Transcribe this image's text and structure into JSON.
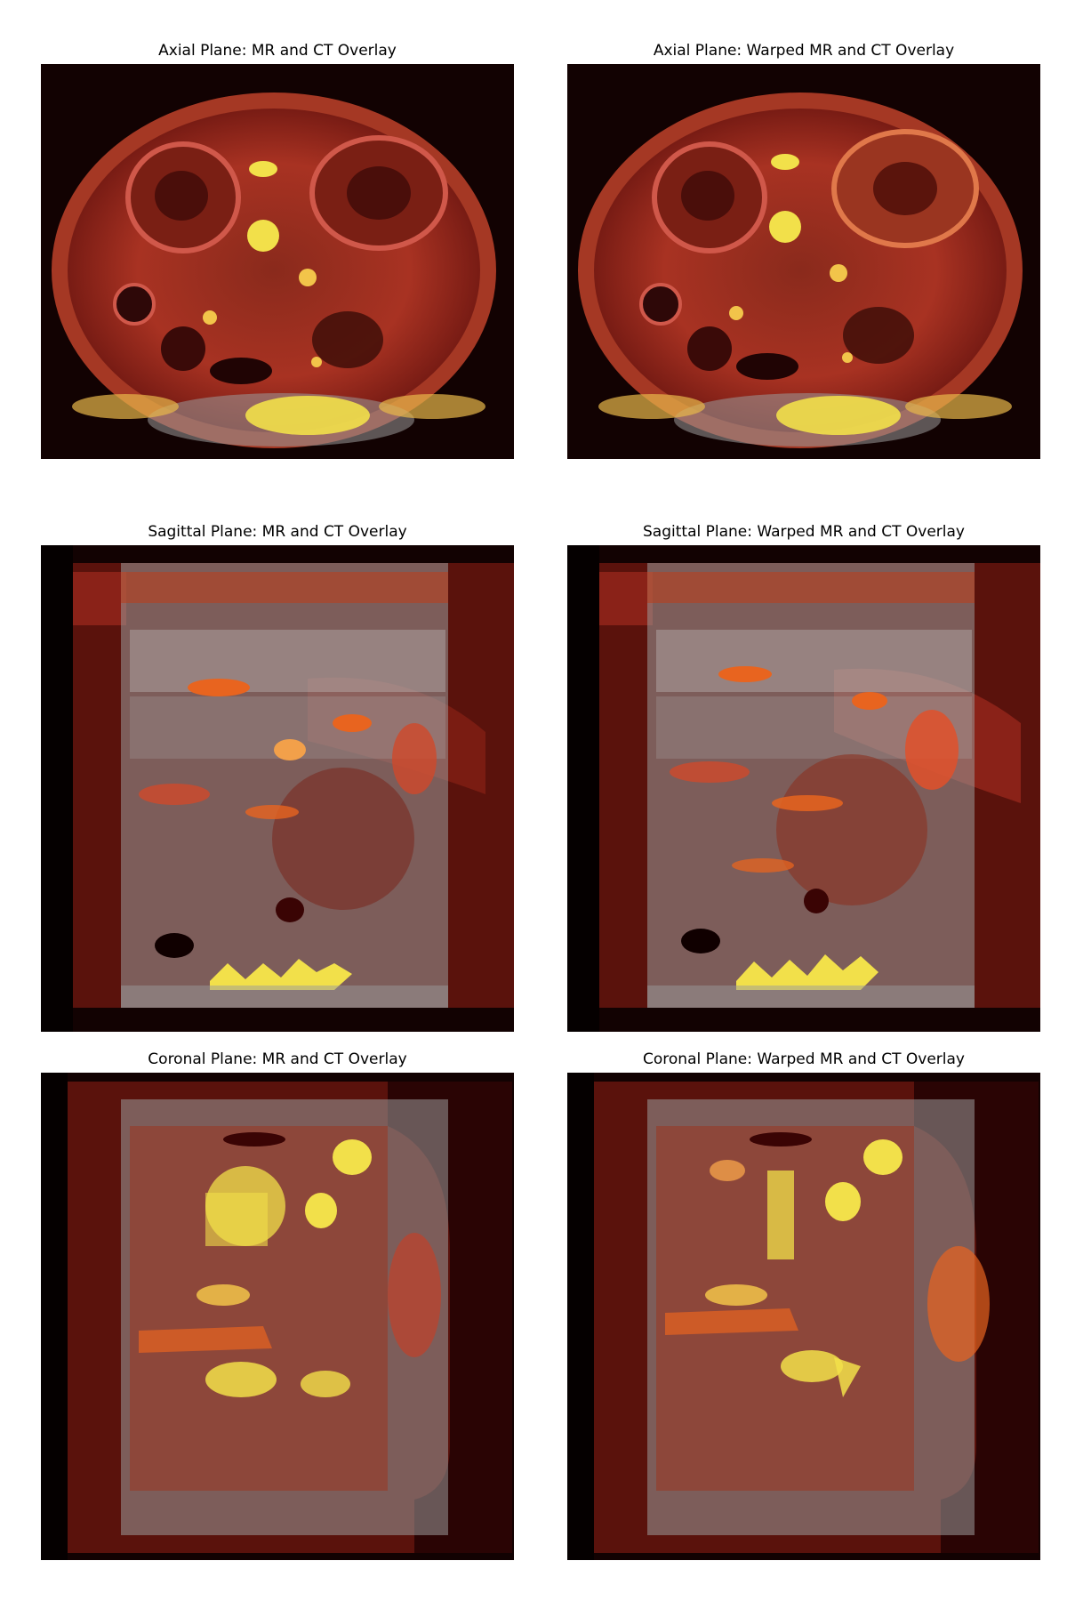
{
  "figure": {
    "panels": [
      {
        "id": "axial-original",
        "title": "Axial Plane: MR and CT Overlay",
        "plane": "axial",
        "warped": false
      },
      {
        "id": "axial-warped",
        "title": "Axial Plane: Warped MR and CT Overlay",
        "plane": "axial",
        "warped": true
      },
      {
        "id": "sagittal-original",
        "title": "Sagittal Plane: MR and CT Overlay",
        "plane": "sagittal",
        "warped": false
      },
      {
        "id": "sagittal-warped",
        "title": "Sagittal Plane: Warped MR and CT Overlay",
        "plane": "sagittal",
        "warped": true
      },
      {
        "id": "coronal-original",
        "title": "Coronal Plane: MR and CT Overlay",
        "plane": "coronal",
        "warped": false
      },
      {
        "id": "coronal-warped",
        "title": "Coronal Plane: Warped MR and CT Overlay",
        "plane": "coronal",
        "warped": true
      }
    ],
    "colors": {
      "background": "#ffffff",
      "image_dark": "#120202",
      "heat_red": "#b52a1a",
      "heat_orange": "#e8641f",
      "heat_yellow": "#f2e04a",
      "ct_gray": "#9a9a9a"
    }
  }
}
